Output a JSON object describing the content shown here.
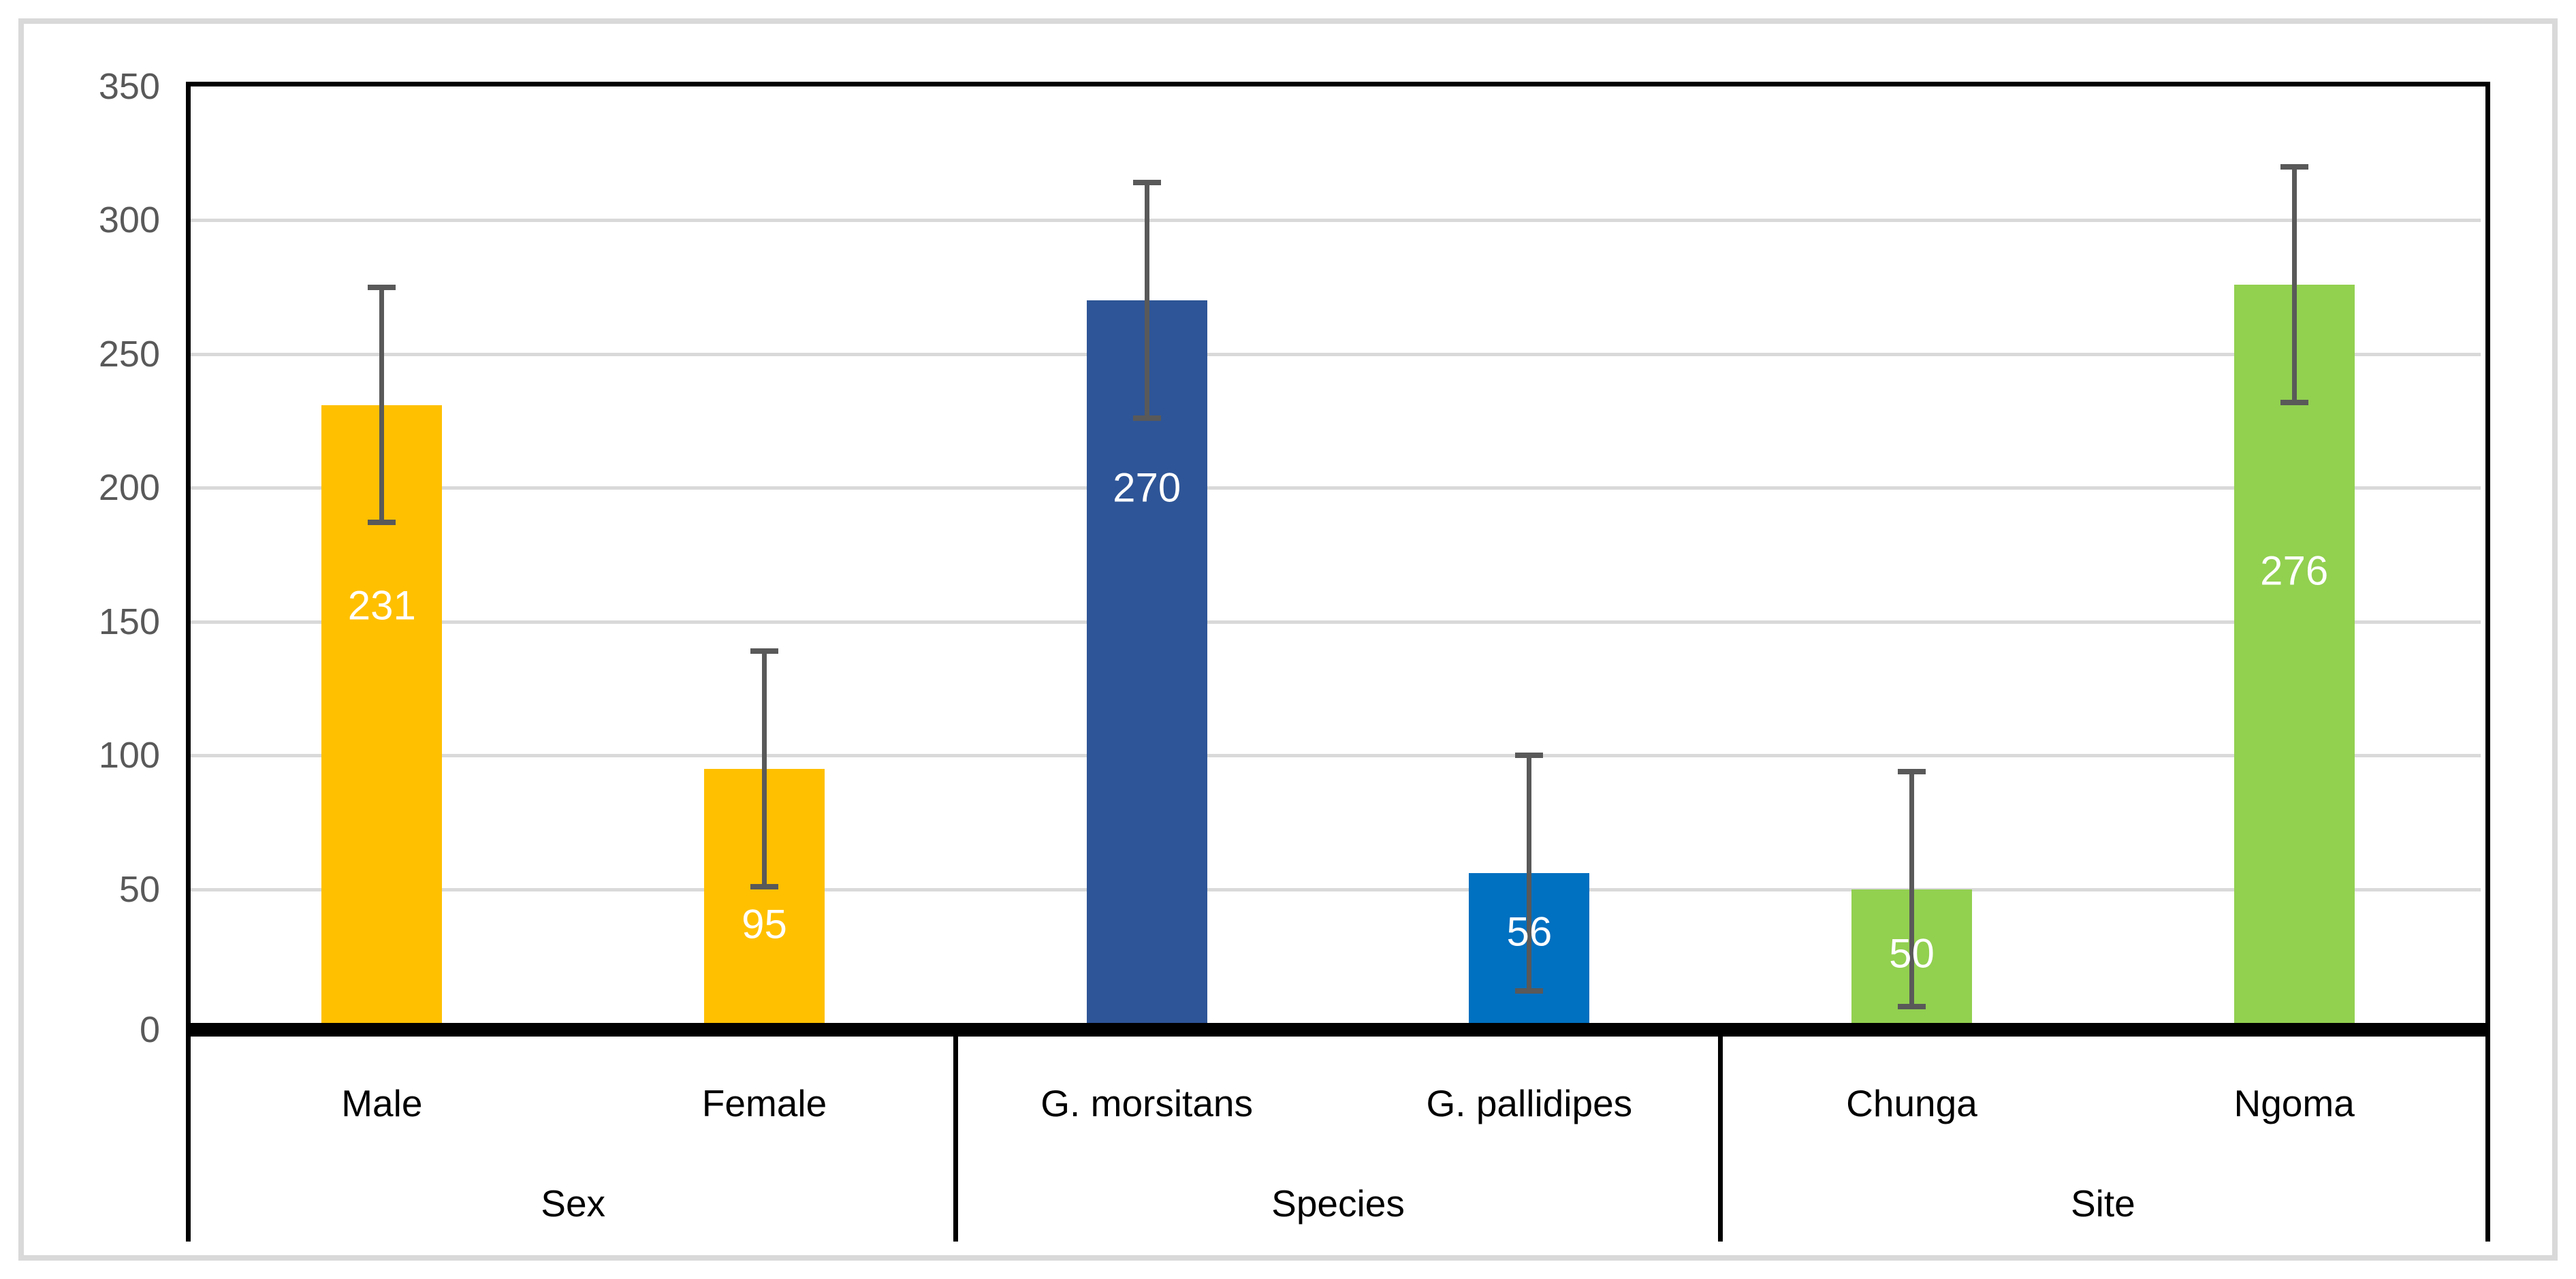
{
  "chart_data": {
    "type": "bar",
    "title": "",
    "categories": [
      "Male",
      "Female",
      "G. morsitans",
      "G. pallidipes",
      "Chunga",
      "Ngoma"
    ],
    "values": [
      231,
      95,
      270,
      56,
      50,
      276
    ],
    "errors": [
      44,
      44,
      44,
      44,
      44,
      44
    ],
    "error_ranges": [
      [
        187,
        275
      ],
      [
        51,
        139
      ],
      [
        226,
        314
      ],
      [
        12,
        100
      ],
      [
        6,
        94
      ],
      [
        232,
        320
      ]
    ],
    "data_labels": [
      "231",
      "95",
      "270",
      "56",
      "50",
      "276"
    ],
    "data_label_y": [
      156,
      37,
      200,
      34,
      26,
      169
    ],
    "bar_colors": [
      "#FFC000",
      "#FFC000",
      "#2E5597",
      "#0070C0",
      "#92D050",
      "#92D050"
    ],
    "groups": [
      {
        "label": "Sex",
        "span": 2
      },
      {
        "label": "Species",
        "span": 2
      },
      {
        "label": "Site",
        "span": 2
      }
    ],
    "xlabel": "",
    "ylabel": "",
    "y_axis": {
      "min": 0,
      "max": 350,
      "step": 50,
      "tick_labels": [
        "0",
        "50",
        "100",
        "150",
        "200",
        "250",
        "300",
        "350"
      ]
    },
    "grid": true,
    "legend_position": "none"
  },
  "style_colors": {
    "bar_yellow": "#FFC000",
    "bar_dark_blue": "#2E5597",
    "bar_bright_blue": "#0070C0",
    "bar_green": "#92D050",
    "error_bar": "#595959",
    "gridline": "#D9D9D9",
    "figure_border": "#D9D9D9",
    "axis_text": "#595959",
    "category_text": "#000000",
    "plot_border": "#000000",
    "data_label_text": "#FFFFFF"
  }
}
